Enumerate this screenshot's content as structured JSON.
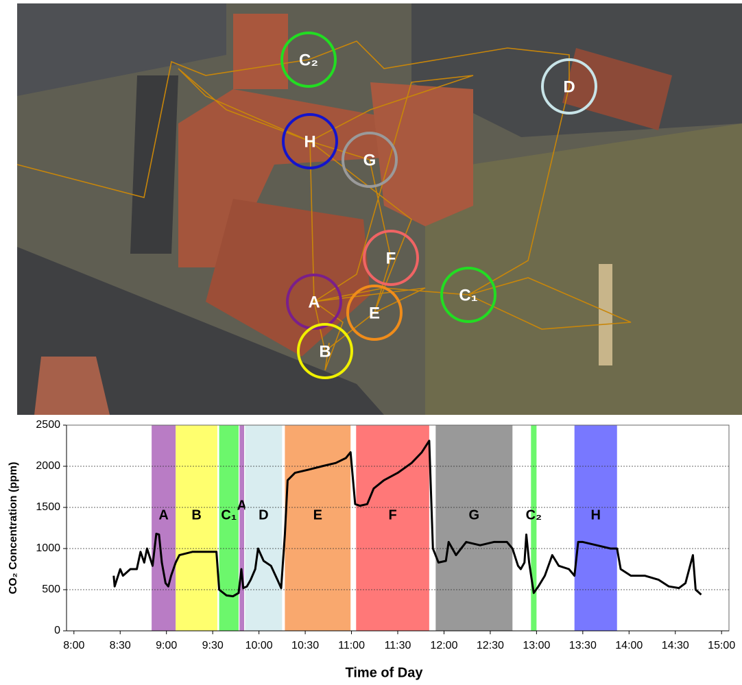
{
  "map": {
    "markers": [
      {
        "label": "C₂",
        "color": "#22dd22"
      },
      {
        "label": "D",
        "color": "#c8e4e8"
      },
      {
        "label": "H",
        "color": "#1414cc"
      },
      {
        "label": "G",
        "color": "#9a9a9a"
      },
      {
        "label": "F",
        "color": "#f06464"
      },
      {
        "label": "C₁",
        "color": "#22dd22"
      },
      {
        "label": "A",
        "color": "#7a1f8a"
      },
      {
        "label": "E",
        "color": "#f08c1a"
      },
      {
        "label": "B",
        "color": "#f0f000"
      }
    ]
  },
  "chart_data": {
    "type": "line",
    "x_label": "Time of Day",
    "y_label": "CO₂ Concentration (ppm)",
    "xlim": [
      7.92,
      15.08
    ],
    "ylim": [
      0,
      2500
    ],
    "xticks": [
      {
        "value": 8,
        "label": "8:00"
      },
      {
        "value": 8.5,
        "label": "8:30"
      },
      {
        "value": 9,
        "label": "9:00"
      },
      {
        "value": 9.5,
        "label": "9:30"
      },
      {
        "value": 10,
        "label": "10:00"
      },
      {
        "value": 10.5,
        "label": "10:30"
      },
      {
        "value": 11,
        "label": "11:00"
      },
      {
        "value": 11.5,
        "label": "11:30"
      },
      {
        "value": 12,
        "label": "12:00"
      },
      {
        "value": 12.5,
        "label": "12:30"
      },
      {
        "value": 13,
        "label": "13:00"
      },
      {
        "value": 13.5,
        "label": "13:30"
      },
      {
        "value": 14,
        "label": "14:00"
      },
      {
        "value": 14.5,
        "label": "14:30"
      },
      {
        "value": 15,
        "label": "15:00"
      }
    ],
    "yticks": [
      0,
      500,
      1000,
      1500,
      2000,
      2500
    ],
    "grid": true,
    "bands": [
      {
        "label": "A",
        "start": 8.84,
        "end": 9.1,
        "color": "#b97cc5"
      },
      {
        "label": "B",
        "start": 9.1,
        "end": 9.55,
        "color": "#ffff6e"
      },
      {
        "label": "C₁",
        "start": 9.57,
        "end": 9.78,
        "color": "#6cf76c"
      },
      {
        "label": "A",
        "start": 9.79,
        "end": 9.84,
        "color": "#b97cc5"
      },
      {
        "label": "D",
        "start": 9.85,
        "end": 10.25,
        "color": "#d9edf0"
      },
      {
        "label": "E",
        "start": 10.28,
        "end": 10.99,
        "color": "#f9a86e"
      },
      {
        "label": "F",
        "start": 11.05,
        "end": 11.84,
        "color": "#ff7878"
      },
      {
        "label": "G",
        "start": 11.91,
        "end": 12.74,
        "color": "#999999"
      },
      {
        "label": "C₂",
        "start": 12.94,
        "end": 13.0,
        "color": "#6cf76c"
      },
      {
        "label": "H",
        "start": 13.41,
        "end": 13.87,
        "color": "#7878ff"
      }
    ],
    "series": [
      {
        "color": "#000000",
        "x": [
          8.43,
          8.44,
          8.5,
          8.53,
          8.61,
          8.68,
          8.72,
          8.76,
          8.79,
          8.85,
          8.89,
          8.92,
          8.95,
          8.99,
          9.02,
          9.05,
          9.1,
          9.14,
          9.28,
          9.42,
          9.54,
          9.57,
          9.65,
          9.72,
          9.78,
          9.81,
          9.83,
          9.87,
          9.91,
          9.96,
          9.99,
          10.05,
          10.13,
          10.2,
          10.24,
          10.28,
          10.31,
          10.39,
          10.54,
          10.68,
          10.83,
          10.94,
          10.99,
          11.04,
          11.09,
          11.17,
          11.24,
          11.35,
          11.5,
          11.65,
          11.76,
          11.84,
          11.88,
          11.94,
          12.02,
          12.05,
          12.13,
          12.24,
          12.39,
          12.54,
          12.68,
          12.74,
          12.8,
          12.83,
          12.87,
          12.89,
          12.92,
          12.97,
          13.02,
          13.09,
          13.17,
          13.24,
          13.35,
          13.41,
          13.45,
          13.5,
          13.65,
          13.8,
          13.87,
          13.91,
          14.02,
          14.17,
          14.32,
          14.43,
          14.54,
          14.61,
          14.65,
          14.69,
          14.72,
          14.78
        ],
        "values": [
          670,
          540,
          750,
          670,
          750,
          750,
          960,
          830,
          1000,
          790,
          1180,
          1170,
          830,
          580,
          540,
          670,
          830,
          920,
          960,
          960,
          960,
          500,
          430,
          420,
          460,
          750,
          520,
          540,
          620,
          750,
          1000,
          850,
          790,
          620,
          520,
          1170,
          1830,
          1920,
          1960,
          2000,
          2040,
          2100,
          2170,
          1540,
          1520,
          1540,
          1730,
          1830,
          1920,
          2040,
          2170,
          2310,
          1000,
          830,
          850,
          1080,
          920,
          1080,
          1040,
          1080,
          1080,
          1000,
          790,
          750,
          830,
          1170,
          830,
          460,
          540,
          670,
          920,
          790,
          750,
          670,
          1080,
          1080,
          1040,
          1000,
          1000,
          750,
          670,
          670,
          620,
          540,
          520,
          580,
          750,
          920,
          500,
          440
        ]
      }
    ]
  }
}
